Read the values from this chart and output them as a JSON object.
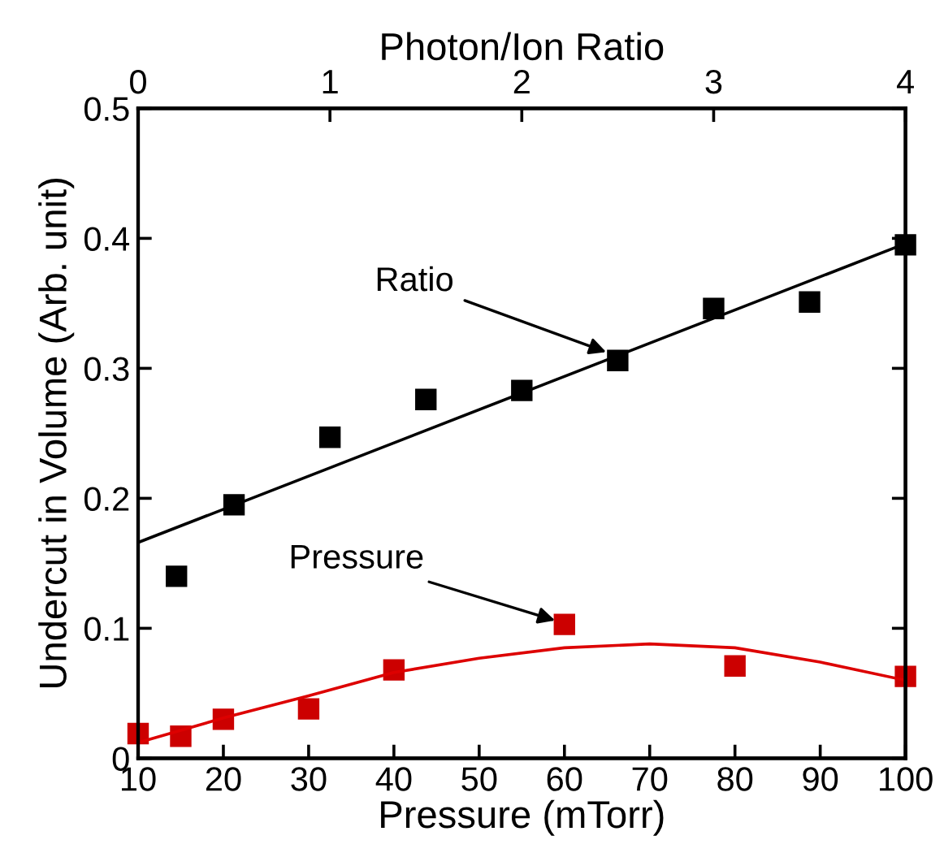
{
  "chart_data": {
    "type": "scatter",
    "xlabel": "Pressure (mTorr)",
    "ylabel": "Undercut in Volume (Arb. unit)",
    "x2label": "Photon/Ion Ratio",
    "xlim": [
      10,
      100
    ],
    "xticks": [
      10,
      20,
      30,
      40,
      50,
      60,
      70,
      80,
      90,
      100
    ],
    "x2lim": [
      0,
      4
    ],
    "x2ticks": [
      0,
      1,
      2,
      3,
      4
    ],
    "ylim": [
      0,
      0.5
    ],
    "yticks": [
      0,
      0.1,
      0.2,
      0.3,
      0.4,
      0.5
    ],
    "series": [
      {
        "axis": "x2",
        "color": "#000000",
        "marker": "square",
        "x": [
          0.2,
          0.5,
          1.0,
          1.5,
          2.0,
          2.5,
          3.0,
          3.5,
          4.0
        ],
        "values": [
          0.14,
          0.195,
          0.247,
          0.276,
          0.283,
          0.306,
          0.346,
          0.351,
          0.395
        ]
      },
      {
        "type": "line",
        "axis": "x2",
        "color": "#000000",
        "marker": "none",
        "x": [
          0,
          4
        ],
        "values": [
          0.166,
          0.396
        ]
      },
      {
        "color": "#cc0000",
        "marker": "square",
        "x": [
          10,
          15,
          20,
          30,
          40,
          60,
          80,
          100
        ],
        "values": [
          0.019,
          0.017,
          0.03,
          0.038,
          0.068,
          0.103,
          0.071,
          0.063
        ]
      },
      {
        "type": "line",
        "color": "#dd0000",
        "marker": "none",
        "x": [
          10,
          20,
          30,
          40,
          50,
          60,
          70,
          80,
          90,
          100
        ],
        "values": [
          0.012,
          0.031,
          0.048,
          0.066,
          0.077,
          0.085,
          0.088,
          0.085,
          0.074,
          0.06
        ]
      }
    ],
    "annotations": [
      {
        "text": "Ratio",
        "x": 64.9,
        "y": 0.3125
      },
      {
        "text": "Pressure",
        "x": 58.9,
        "y": 0.106
      }
    ],
    "grid": false,
    "legend": false
  }
}
